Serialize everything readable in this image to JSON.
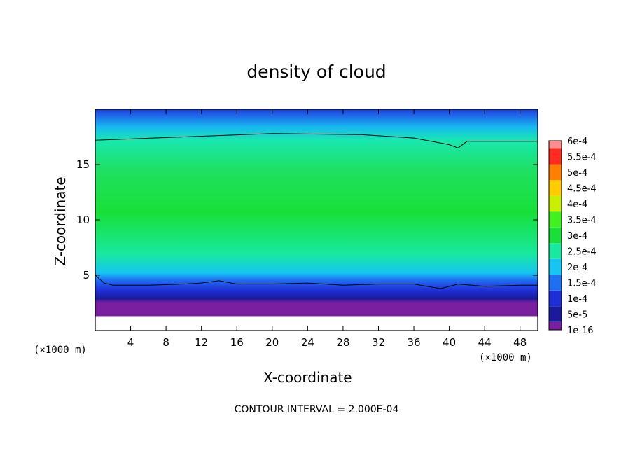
{
  "chart_data": {
    "type": "heatmap",
    "title": "density of cloud",
    "xlabel": "X-coordinate",
    "ylabel": "Z-coordinate",
    "x_unit_label": "(×1000 m)",
    "xlim": [
      0,
      50
    ],
    "ylim": [
      0,
      20
    ],
    "x_ticks": [
      4,
      8,
      12,
      16,
      20,
      24,
      28,
      32,
      36,
      40,
      44,
      48
    ],
    "y_ticks": [
      5,
      10,
      15
    ],
    "contour_interval_text": "CONTOUR INTERVAL = 2.000E-04",
    "colorbar": {
      "levels": [
        "1e-16",
        "5e-5",
        "1e-4",
        "1.5e-4",
        "2e-4",
        "2.5e-4",
        "3e-4",
        "3.5e-4",
        "4e-4",
        "4.5e-4",
        "5e-4",
        "5.5e-4",
        "6e-4"
      ],
      "colors": [
        "#7a1fa0",
        "#1a1a9a",
        "#1f2fd8",
        "#1f6ff2",
        "#16c6f0",
        "#18e8a0",
        "#18e038",
        "#40f020",
        "#c8f000",
        "#ffcc00",
        "#ff8000",
        "#ff2a20",
        "#ff8c8c"
      ]
    },
    "field_profile": [
      {
        "z": 1.3,
        "value": 0,
        "color": "#7a1fa0"
      },
      {
        "z": 1.7,
        "value": 5e-05,
        "color": "#1a1a9a"
      },
      {
        "z": 2.5,
        "value": 0.0001,
        "color": "#1f2fd8"
      },
      {
        "z": 3.5,
        "value": 0.00015,
        "color": "#1f6ff2"
      },
      {
        "z": 4.2,
        "value": 0.0002,
        "color": "#16c6f0"
      },
      {
        "z": 6.0,
        "value": 0.00025,
        "color": "#18e8a0"
      },
      {
        "z": 10.0,
        "value": 0.0003,
        "color": "#18e038"
      },
      {
        "z": 14.0,
        "value": 0.00028,
        "color": "#20e060"
      },
      {
        "z": 17.0,
        "value": 0.00022,
        "color": "#18e8b0"
      },
      {
        "z": 18.3,
        "value": 0.00017,
        "color": "#18b8f0"
      },
      {
        "z": 19.5,
        "value": 0.0001,
        "color": "#1f60e8"
      },
      {
        "z": 20.0,
        "value": 8e-05,
        "color": "#1f40d8"
      }
    ],
    "contour_line_upper": {
      "x": [
        0,
        10,
        20,
        30,
        36,
        40,
        41,
        42,
        44,
        50
      ],
      "z": [
        17.2,
        17.5,
        17.8,
        17.7,
        17.4,
        16.8,
        16.5,
        17.1,
        17.1,
        17.1
      ]
    },
    "contour_line_lower": {
      "x": [
        0,
        1,
        2,
        6,
        10,
        12,
        14,
        16,
        20,
        24,
        28,
        32,
        36,
        39,
        41,
        44,
        48,
        50
      ],
      "z": [
        5.0,
        4.3,
        4.1,
        4.1,
        4.2,
        4.3,
        4.5,
        4.2,
        4.2,
        4.3,
        4.1,
        4.2,
        4.2,
        3.8,
        4.2,
        4.0,
        4.1,
        4.1
      ]
    }
  }
}
